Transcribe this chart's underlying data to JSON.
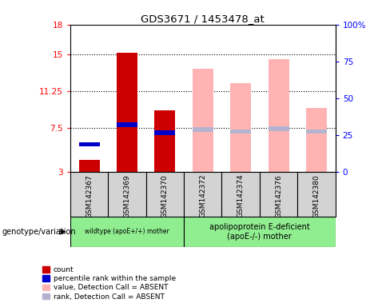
{
  "title": "GDS3671 / 1453478_at",
  "categories": [
    "GSM142367",
    "GSM142369",
    "GSM142370",
    "GSM142372",
    "GSM142374",
    "GSM142376",
    "GSM142380"
  ],
  "count_values": [
    4.2,
    15.1,
    9.3,
    null,
    null,
    null,
    null
  ],
  "percentile_rank_values": [
    5.8,
    7.8,
    7.0,
    null,
    null,
    null,
    null
  ],
  "absent_value_values": [
    null,
    null,
    null,
    13.5,
    12.0,
    14.5,
    9.5
  ],
  "absent_rank_values": [
    null,
    null,
    null,
    7.3,
    7.1,
    7.4,
    7.1
  ],
  "ylim_left": [
    3,
    18
  ],
  "ylim_right": [
    0,
    100
  ],
  "yticks_left": [
    3,
    7.5,
    11.25,
    15,
    18
  ],
  "ytick_labels_left": [
    "3",
    "7.5",
    "11.25",
    "15",
    "18"
  ],
  "yticks_right": [
    0,
    25,
    50,
    75,
    100
  ],
  "ytick_labels_right": [
    "0",
    "25",
    "50",
    "75",
    "100%"
  ],
  "color_count": "#cc0000",
  "color_percentile": "#0000cc",
  "color_absent_value": "#ffb3b3",
  "color_absent_rank": "#b3b3d0",
  "group1_label": "wildtype (apoE+/+) mother",
  "group2_label": "apolipoprotein E-deficient\n(apoE-/-) mother",
  "genotype_label": "genotype/variation",
  "legend_items": [
    "count",
    "percentile rank within the sample",
    "value, Detection Call = ABSENT",
    "rank, Detection Call = ABSENT"
  ],
  "bar_width": 0.55,
  "grid_yticks": [
    7.5,
    11.25,
    15
  ],
  "group1_count": 3,
  "group2_count": 4,
  "cat_box_color": "#d3d3d3",
  "group_box_color": "#90ee90",
  "percentile_bar_height": 0.45
}
